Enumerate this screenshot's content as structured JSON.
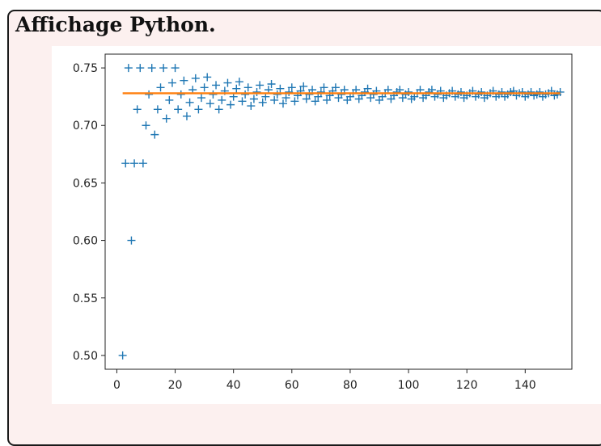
{
  "box": {
    "title": "Affichage Python."
  },
  "chart_data": {
    "type": "scatter",
    "title": "",
    "xlabel": "",
    "ylabel": "",
    "xlim": [
      -4,
      156
    ],
    "ylim": [
      0.488,
      0.762
    ],
    "grid": false,
    "xticks": [
      0,
      20,
      40,
      60,
      80,
      100,
      120,
      140
    ],
    "xtick_labels": [
      "0",
      "20",
      "40",
      "60",
      "80",
      "100",
      "120",
      "140"
    ],
    "yticks": [
      0.5,
      0.55,
      0.6,
      0.65,
      0.7,
      0.75
    ],
    "ytick_labels": [
      "0.50",
      "0.55",
      "0.60",
      "0.65",
      "0.70",
      "0.75"
    ],
    "series": [
      {
        "marker": "+",
        "color": "#1f77b4",
        "x": [
          2,
          3,
          4,
          5,
          6,
          7,
          8,
          9,
          10,
          11,
          12,
          13,
          14,
          15,
          16,
          17,
          18,
          19,
          20,
          21,
          22,
          23,
          24,
          25,
          26,
          27,
          28,
          29,
          30,
          31,
          32,
          33,
          34,
          35,
          36,
          37,
          38,
          39,
          40,
          41,
          42,
          43,
          44,
          45,
          46,
          47,
          48,
          49,
          50,
          51,
          52,
          53,
          54,
          55,
          56,
          57,
          58,
          59,
          60,
          61,
          62,
          63,
          64,
          65,
          66,
          67,
          68,
          69,
          70,
          71,
          72,
          73,
          74,
          75,
          76,
          77,
          78,
          79,
          80,
          81,
          82,
          83,
          84,
          85,
          86,
          87,
          88,
          89,
          90,
          91,
          92,
          93,
          94,
          95,
          96,
          97,
          98,
          99,
          100,
          101,
          102,
          103,
          104,
          105,
          106,
          107,
          108,
          109,
          110,
          111,
          112,
          113,
          114,
          115,
          116,
          117,
          118,
          119,
          120,
          121,
          122,
          123,
          124,
          125,
          126,
          127,
          128,
          129,
          130,
          131,
          132,
          133,
          134,
          135,
          136,
          137,
          138,
          139,
          140,
          141,
          142,
          143,
          144,
          145,
          146,
          147,
          148,
          149,
          150,
          151,
          152
        ],
        "y": [
          0.5,
          0.667,
          0.75,
          0.6,
          0.667,
          0.714,
          0.75,
          0.667,
          0.7,
          0.727,
          0.75,
          0.692,
          0.714,
          0.733,
          0.75,
          0.706,
          0.722,
          0.737,
          0.75,
          0.714,
          0.727,
          0.739,
          0.708,
          0.72,
          0.731,
          0.741,
          0.714,
          0.724,
          0.733,
          0.742,
          0.719,
          0.727,
          0.735,
          0.714,
          0.722,
          0.73,
          0.737,
          0.718,
          0.725,
          0.732,
          0.738,
          0.721,
          0.727,
          0.733,
          0.717,
          0.723,
          0.729,
          0.735,
          0.72,
          0.725,
          0.731,
          0.736,
          0.722,
          0.727,
          0.732,
          0.719,
          0.724,
          0.729,
          0.733,
          0.721,
          0.726,
          0.73,
          0.734,
          0.723,
          0.727,
          0.731,
          0.721,
          0.725,
          0.729,
          0.733,
          0.722,
          0.726,
          0.73,
          0.733,
          0.724,
          0.727,
          0.731,
          0.722,
          0.725,
          0.728,
          0.731,
          0.723,
          0.726,
          0.729,
          0.732,
          0.724,
          0.727,
          0.73,
          0.722,
          0.725,
          0.728,
          0.731,
          0.723,
          0.726,
          0.729,
          0.731,
          0.724,
          0.727,
          0.729,
          0.723,
          0.725,
          0.728,
          0.731,
          0.724,
          0.726,
          0.729,
          0.731,
          0.725,
          0.727,
          0.73,
          0.724,
          0.726,
          0.728,
          0.73,
          0.725,
          0.727,
          0.729,
          0.724,
          0.726,
          0.728,
          0.73,
          0.725,
          0.727,
          0.729,
          0.724,
          0.726,
          0.728,
          0.73,
          0.725,
          0.727,
          0.729,
          0.725,
          0.727,
          0.729,
          0.73,
          0.726,
          0.728,
          0.729,
          0.725,
          0.727,
          0.729,
          0.726,
          0.727,
          0.729,
          0.725,
          0.727,
          0.728,
          0.73,
          0.726,
          0.727,
          0.729
        ]
      },
      {
        "marker": "line",
        "color": "#ff7f0e",
        "x": [
          2,
          152
        ],
        "y": [
          0.728,
          0.728
        ]
      }
    ]
  }
}
